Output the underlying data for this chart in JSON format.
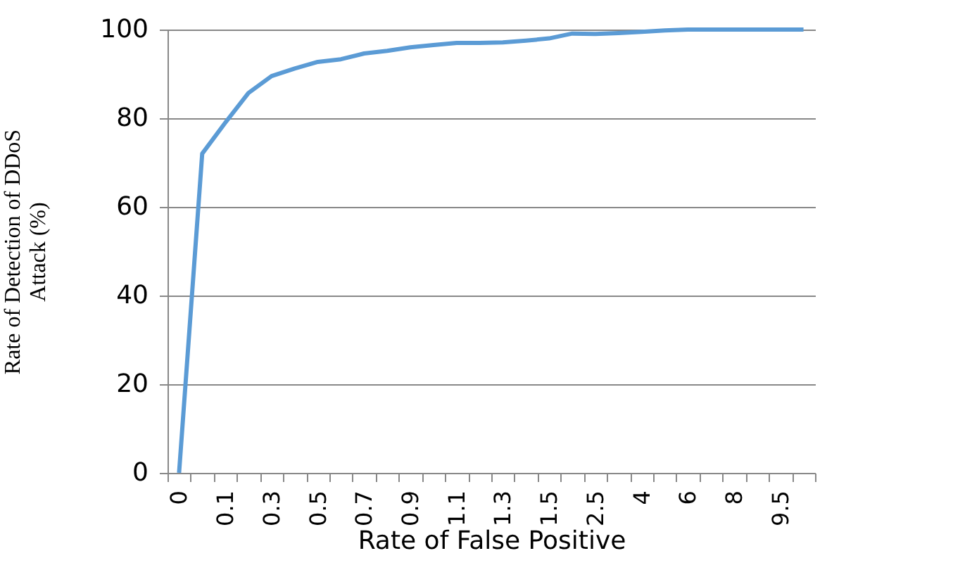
{
  "chart_data": {
    "type": "line",
    "xlabel": "Rate of False Positive",
    "ylabel": "Rate of Detection of DDoS\nAttack (%)",
    "categories": [
      "0",
      null,
      "0.1",
      null,
      "0.3",
      null,
      "0.5",
      null,
      "0.7",
      null,
      "0.9",
      null,
      "1.1",
      null,
      "1.3",
      null,
      "1.5",
      null,
      "2.5",
      null,
      "4",
      null,
      "6",
      null,
      "8",
      null,
      "9.5",
      null
    ],
    "series": [
      {
        "color": "#5b9bd5",
        "values": [
          0,
          72,
          79,
          85.7,
          89.5,
          91.2,
          92.7,
          93.3,
          94.6,
          95.2,
          96,
          96.5,
          97,
          97,
          97.1,
          97.5,
          98,
          99.1,
          99,
          99.2,
          99.5,
          99.8,
          100,
          100,
          100,
          100,
          100,
          100
        ]
      }
    ],
    "ylim": [
      0,
      100
    ],
    "yticks": [
      0,
      20,
      40,
      60,
      80,
      100
    ],
    "grid": "y",
    "legend": false,
    "marker": "none",
    "line_style": "solid"
  }
}
